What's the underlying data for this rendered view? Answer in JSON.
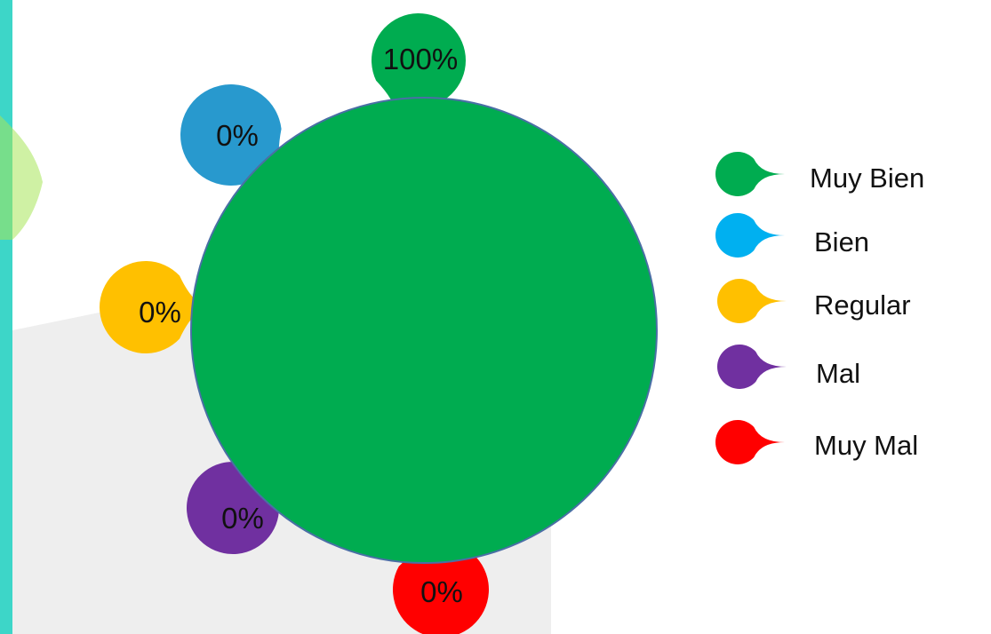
{
  "chart_data": {
    "type": "pie",
    "title": "",
    "categories": [
      "Muy Bien",
      "Bien",
      "Regular",
      "Mal",
      "Muy Mal"
    ],
    "values": [
      100,
      0,
      0,
      0,
      0
    ],
    "data_labels": [
      "100%",
      "0%",
      "0%",
      "0%",
      "0%"
    ],
    "colors": [
      "#00AC50",
      "#00B0F0",
      "#FFC000",
      "#7030A0",
      "#FF0000"
    ],
    "callout_colors": [
      "#00AC50",
      "#2899CE",
      "#FFC000",
      "#7030A0",
      "#FF0000"
    ],
    "legend": {
      "position": "right",
      "entries": [
        "Muy Bien",
        "Bien",
        "Regular",
        "Mal",
        "Muy Mal"
      ]
    },
    "pie_edge_color": "#4A6FA5",
    "background_shape_color": "#EEEEEE",
    "left_accent_color": "#3DD6C8"
  }
}
